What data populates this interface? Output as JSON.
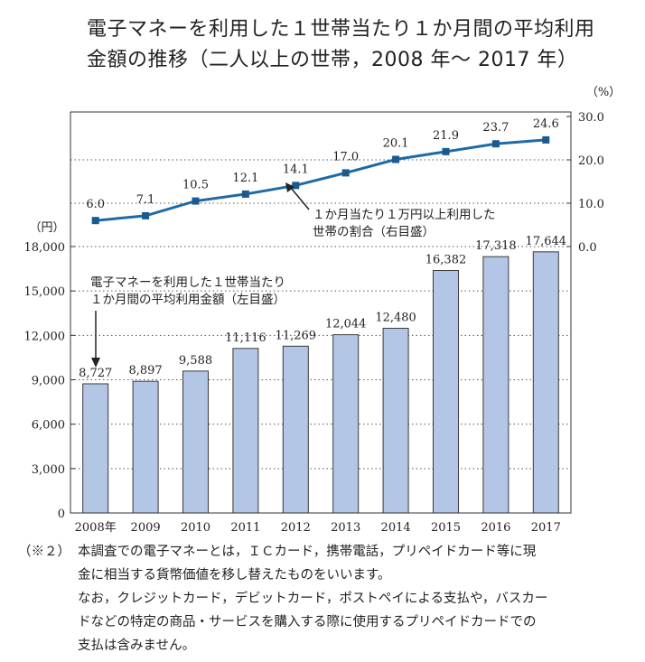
{
  "title": {
    "line1": "電子マネーを利用した１世帯当たり１か月間の平均利用",
    "line2": "金額の推移（二人以上の世帯，2008 年～ 2017 年）"
  },
  "chart_data": {
    "type": "bar",
    "categories": [
      "2008年",
      "2009",
      "2010",
      "2011",
      "2012",
      "2013",
      "2014",
      "2015",
      "2016",
      "2017"
    ],
    "series": [
      {
        "values": [
          8727,
          8897,
          9588,
          11116,
          11269,
          12044,
          12480,
          16382,
          17318,
          17644
        ],
        "labels": [
          "8,727",
          "8,897",
          "9,588",
          "11,116",
          "11,269",
          "12,044",
          "12,480",
          "16,382",
          "17,318",
          "17,644"
        ],
        "type": "bar",
        "axis": "left",
        "color": "#b3c6e6"
      },
      {
        "values": [
          6.0,
          7.1,
          10.5,
          12.1,
          14.1,
          17.0,
          20.1,
          21.9,
          23.7,
          24.6
        ],
        "labels": [
          "6.0",
          "7.1",
          "10.5",
          "12.1",
          "14.1",
          "17.0",
          "20.1",
          "21.9",
          "23.7",
          "24.6"
        ],
        "type": "line",
        "axis": "right",
        "color": "#1f6aa5"
      }
    ],
    "left_axis": {
      "unit": "（円）",
      "ylim": [
        0,
        18000
      ],
      "ticks": [
        "18,000",
        "15,000",
        "12,000",
        "9,000",
        "6,000",
        "3,000",
        "0"
      ]
    },
    "right_axis": {
      "unit": "（%）",
      "ylim": [
        0,
        30
      ],
      "ticks": [
        "30.0",
        "20.0",
        "10.0",
        "0.0"
      ]
    },
    "annotations": {
      "bar_label_line1": "電子マネーを利用した１世帯当たり",
      "bar_label_line2": "１か月間の平均利用金額（左目盛）",
      "line_label_line1": "１か月当たり１万円以上利用した",
      "line_label_line2": "世帯の割合（右目盛）"
    },
    "grid": "dotted horizontal"
  },
  "note": {
    "marker": "（※２）",
    "lines": [
      "本調査での電子マネーとは，ＩＣカード，携帯電話，プリペイドカード等に現",
      "金に相当する貨幣価値を移し替えたものをいいます。",
      "なお，クレジットカード，デビットカード，ポストペイによる支払や，バスカー",
      "ドなどの特定の商品・サービスを購入する際に使用するプリペイドカードでの",
      "支払は含みません。"
    ]
  }
}
